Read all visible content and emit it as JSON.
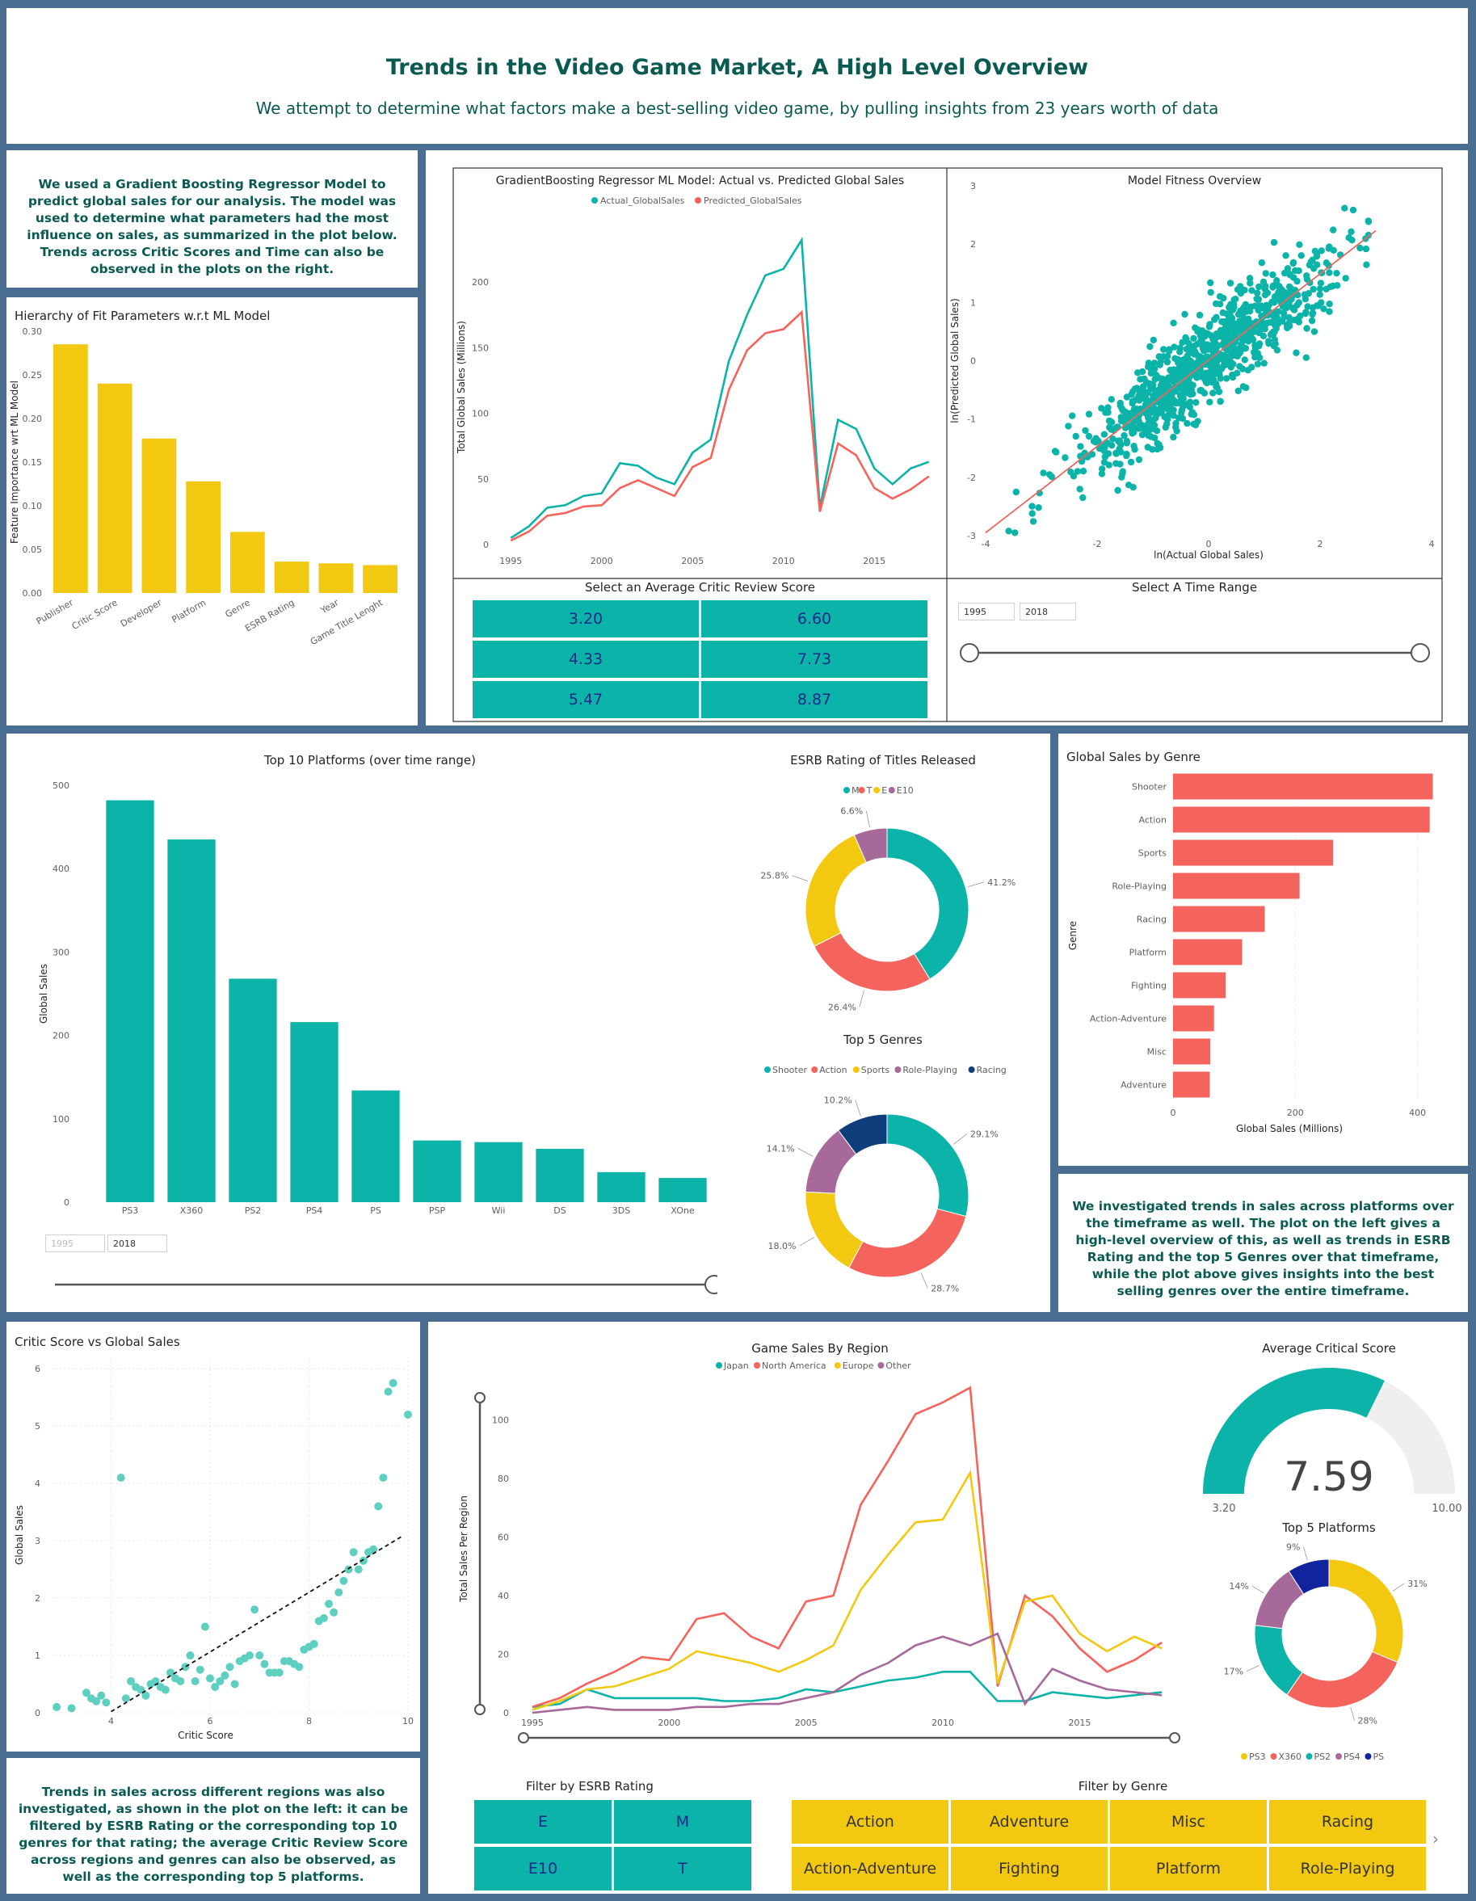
{
  "header": {
    "title": "Trends in the Video Game Market, A High Level Overview",
    "subtitle": "We attempt to determine what factors make a best-selling video game, by pulling insights from 23 years worth of data"
  },
  "intro_text": "We used a Gradient Boosting Regressor Model to predict global sales for our analysis. The model was used to determine what parameters had the most influence on sales, as summarized in the plot below. Trends across Critic Scores and Time can also be observed in the plots on the right.",
  "platform_text": "We investigated trends in sales across platforms over the timeframe as well. The plot on the left gives a high-level overview of this, as well as trends in ESRB Rating and the top 5 Genres over that timeframe, while the plot above gives insights into the best selling genres over the entire timeframe.",
  "region_text": "Trends in sales across different regions was also investigated, as shown in the plot on the left: it can be filtered by ESRB Rating or the corresponding top 10 genres for that rating; the average Critic Review Score across regions and genres can also be observed, as well as the corresponding top 5 platforms.",
  "colors": {
    "teal": "#0cb3a8",
    "red": "#f5635d",
    "yellow": "#f2c811",
    "purple": "#a66999",
    "navy": "#12239e",
    "header_text": "#0b5a52"
  },
  "chart_data": [
    {
      "id": "feature_importance",
      "type": "bar",
      "title": "Hierarchy of Fit Parameters w.r.t ML Model",
      "ylabel": "Feature Importance wrt ML Model",
      "categories": [
        "Publisher",
        "Critic Score",
        "Developer",
        "Platform",
        "Genre",
        "ESRB Rating",
        "Year",
        "Game Title Lenght"
      ],
      "values": [
        0.285,
        0.24,
        0.177,
        0.128,
        0.07,
        0.036,
        0.034,
        0.032
      ],
      "ylim": [
        0,
        0.3
      ],
      "yticks": [
        "0.00",
        "0.05",
        "0.10",
        "0.15",
        "0.20",
        "0.25",
        "0.30"
      ],
      "color": "#f2c811"
    },
    {
      "id": "actual_vs_predicted",
      "type": "line",
      "title": "GradientBoosting Regressor ML Model: Actual vs. Predicted Global Sales",
      "ylabel": "Total Global Sales (Millions)",
      "x": [
        1995,
        1996,
        1997,
        1998,
        1999,
        2000,
        2001,
        2002,
        2003,
        2004,
        2005,
        2006,
        2007,
        2008,
        2009,
        2010,
        2011,
        2012,
        2013,
        2014,
        2015,
        2016,
        2017,
        2018
      ],
      "xlim": [
        1994.5,
        2018.5
      ],
      "xticks": [
        "1995",
        "2000",
        "2005",
        "2010",
        "2015"
      ],
      "ylim": [
        0,
        240
      ],
      "yticks": [
        "0",
        "50",
        "100",
        "150",
        "200"
      ],
      "series": [
        {
          "name": "Actual_GlobalSales",
          "color": "#0cb3a8",
          "values": [
            5,
            14,
            28,
            30,
            37,
            39,
            62,
            60,
            51,
            46,
            70,
            80,
            140,
            175,
            205,
            210,
            232,
            28,
            95,
            88,
            58,
            46,
            58,
            63
          ]
        },
        {
          "name": "Predicted_GlobalSales",
          "color": "#f5635d",
          "values": [
            3,
            10,
            22,
            24,
            29,
            30,
            43,
            49,
            43,
            37,
            59,
            66,
            118,
            148,
            161,
            164,
            177,
            25,
            77,
            68,
            43,
            35,
            42,
            52
          ]
        }
      ]
    },
    {
      "id": "model_fitness",
      "type": "scatter",
      "title": "Model Fitness Overview",
      "xlabel": "ln(Actual Global Sales)",
      "ylabel": "ln(Predicted Global Sales)",
      "xlim": [
        -4,
        4
      ],
      "ylim": [
        -3,
        3
      ],
      "xticks": [
        "-4",
        "-2",
        "0",
        "2",
        "4"
      ],
      "yticks": [
        "-3",
        "-2",
        "-1",
        "0",
        "1",
        "2",
        "3"
      ],
      "trend": {
        "slope": 0.74,
        "intercept": 0.01,
        "x_range": [
          -4,
          3
        ]
      },
      "point_color": "#0cb3a8"
    },
    {
      "id": "top10_platforms",
      "type": "bar",
      "title": "Top 10 Platforms (over time range)",
      "ylabel": "Global Sales",
      "categories": [
        "PS3",
        "X360",
        "PS2",
        "PS4",
        "PS",
        "PSP",
        "Wii",
        "DS",
        "3DS",
        "XOne"
      ],
      "values": [
        482,
        435,
        268,
        216,
        134,
        74,
        72,
        64,
        36,
        29
      ],
      "ylim": [
        0,
        500
      ],
      "yticks": [
        "0",
        "100",
        "200",
        "300",
        "400",
        "500"
      ],
      "color": "#0cb3a8"
    },
    {
      "id": "esrb_rating",
      "type": "pie",
      "title": "ESRB Rating of Titles Released",
      "labels": [
        "M",
        "T",
        "E",
        "E10"
      ],
      "values": [
        41.2,
        26.4,
        25.8,
        6.6
      ],
      "value_labels": [
        "41.2%",
        "26.4%",
        "25.8%",
        "6.6%"
      ],
      "colors": [
        "#0cb3a8",
        "#f5635d",
        "#f2c811",
        "#a66999"
      ]
    },
    {
      "id": "top5_genres",
      "type": "pie",
      "title": "Top 5 Genres",
      "labels": [
        "Shooter",
        "Action",
        "Sports",
        "Role-Playing",
        "Racing"
      ],
      "values": [
        29.1,
        28.7,
        18.0,
        14.1,
        10.2
      ],
      "value_labels": [
        "29.1%",
        "28.7%",
        "18.0%",
        "14.1%",
        "10.2%"
      ],
      "colors": [
        "#0cb3a8",
        "#f5635d",
        "#f2c811",
        "#a66999",
        "#0e3f7c"
      ]
    },
    {
      "id": "genre_sales",
      "type": "bar",
      "title": "Global Sales by Genre",
      "xlabel": "Global Sales (Millions)",
      "ylabel": "Genre",
      "categories": [
        "Shooter",
        "Action",
        "Sports",
        "Role-Playing",
        "Racing",
        "Platform",
        "Fighting",
        "Action-Adventure",
        "Misc",
        "Adventure"
      ],
      "values": [
        425,
        420,
        262,
        207,
        150,
        113,
        86,
        67,
        61,
        60
      ],
      "xlim": [
        0,
        460
      ],
      "xticks": [
        "0",
        "200",
        "400"
      ],
      "color": "#f5635d"
    },
    {
      "id": "critic_vs_sales",
      "type": "scatter",
      "title": "Critic Score vs Global Sales",
      "xlabel": "Critic Score",
      "ylabel": "Global Sales",
      "xlim": [
        2.8,
        10
      ],
      "ylim": [
        0,
        6.2
      ],
      "xticks": [
        "4",
        "6",
        "8",
        "10"
      ],
      "yticks": [
        "0",
        "1",
        "2",
        "3",
        "4",
        "5",
        "6"
      ],
      "points": [
        [
          2.9,
          0.1
        ],
        [
          3.2,
          0.08
        ],
        [
          3.5,
          0.35
        ],
        [
          3.6,
          0.25
        ],
        [
          3.7,
          0.2
        ],
        [
          3.8,
          0.3
        ],
        [
          3.9,
          0.18
        ],
        [
          4.2,
          4.1
        ],
        [
          4.3,
          0.25
        ],
        [
          4.4,
          0.55
        ],
        [
          4.5,
          0.45
        ],
        [
          4.6,
          0.4
        ],
        [
          4.7,
          0.3
        ],
        [
          4.8,
          0.5
        ],
        [
          4.9,
          0.55
        ],
        [
          5.0,
          0.45
        ],
        [
          5.1,
          0.4
        ],
        [
          5.2,
          0.7
        ],
        [
          5.3,
          0.6
        ],
        [
          5.4,
          0.55
        ],
        [
          5.5,
          0.8
        ],
        [
          5.6,
          1.0
        ],
        [
          5.7,
          0.55
        ],
        [
          5.8,
          0.75
        ],
        [
          5.9,
          1.5
        ],
        [
          6.0,
          0.6
        ],
        [
          6.1,
          0.45
        ],
        [
          6.2,
          0.55
        ],
        [
          6.3,
          0.65
        ],
        [
          6.4,
          0.8
        ],
        [
          6.5,
          0.5
        ],
        [
          6.6,
          0.9
        ],
        [
          6.7,
          0.95
        ],
        [
          6.8,
          1.0
        ],
        [
          6.9,
          1.8
        ],
        [
          7.0,
          1.0
        ],
        [
          7.1,
          0.85
        ],
        [
          7.2,
          0.7
        ],
        [
          7.3,
          0.7
        ],
        [
          7.4,
          0.7
        ],
        [
          7.5,
          0.9
        ],
        [
          7.6,
          0.9
        ],
        [
          7.7,
          0.85
        ],
        [
          7.8,
          0.8
        ],
        [
          7.9,
          1.1
        ],
        [
          8.0,
          1.15
        ],
        [
          8.1,
          1.2
        ],
        [
          8.2,
          1.6
        ],
        [
          8.3,
          1.65
        ],
        [
          8.4,
          1.9
        ],
        [
          8.5,
          1.75
        ],
        [
          8.6,
          2.1
        ],
        [
          8.7,
          2.3
        ],
        [
          8.8,
          2.5
        ],
        [
          8.9,
          2.8
        ],
        [
          9.0,
          2.5
        ],
        [
          9.1,
          2.65
        ],
        [
          9.2,
          2.8
        ],
        [
          9.3,
          2.85
        ],
        [
          9.4,
          3.6
        ],
        [
          9.5,
          4.1
        ],
        [
          9.6,
          5.6
        ],
        [
          9.7,
          5.75
        ],
        [
          10.0,
          5.2
        ]
      ],
      "trend": {
        "slope": 0.52,
        "intercept": -2.06,
        "x_range": [
          4.0,
          9.9
        ]
      },
      "point_color": "#5fcfc0"
    },
    {
      "id": "sales_by_region",
      "type": "line",
      "title": "Game Sales By Region",
      "ylabel": "Total Sales Per Region",
      "x": [
        1995,
        1996,
        1997,
        1998,
        1999,
        2000,
        2001,
        2002,
        2003,
        2004,
        2005,
        2006,
        2007,
        2008,
        2009,
        2010,
        2011,
        2012,
        2013,
        2014,
        2015,
        2016,
        2017,
        2018
      ],
      "xlim": [
        1994.5,
        2018.5
      ],
      "xticks": [
        "1995",
        "2000",
        "2005",
        "2010",
        "2015"
      ],
      "ylim": [
        0,
        112
      ],
      "yticks": [
        "0",
        "20",
        "40",
        "60",
        "80",
        "100"
      ],
      "series": [
        {
          "name": "Japan",
          "color": "#0cb3a8",
          "values": [
            2,
            3,
            8,
            5,
            5,
            5,
            5,
            4,
            4,
            5,
            8,
            7,
            9,
            11,
            12,
            14,
            14,
            4,
            4,
            7,
            6,
            5,
            6,
            7
          ]
        },
        {
          "name": "North America",
          "color": "#f5635d",
          "values": [
            2,
            5,
            10,
            14,
            19,
            18,
            32,
            34,
            26,
            22,
            38,
            40,
            71,
            86,
            102,
            106,
            111,
            9,
            40,
            33,
            22,
            14,
            18,
            24
          ]
        },
        {
          "name": "Europe",
          "color": "#f2c811",
          "values": [
            1,
            4,
            8,
            9,
            12,
            15,
            21,
            19,
            17,
            14,
            18,
            23,
            42,
            54,
            65,
            66,
            82,
            10,
            38,
            40,
            27,
            21,
            26,
            22
          ]
        },
        {
          "name": "Other",
          "color": "#a66999",
          "values": [
            0,
            1,
            2,
            1,
            1,
            1,
            2,
            2,
            3,
            3,
            5,
            7,
            13,
            17,
            23,
            26,
            23,
            27,
            3,
            15,
            11,
            8,
            7,
            6
          ]
        }
      ]
    },
    {
      "id": "average_critical_score",
      "type": "gauge",
      "title": "Average Critical Score",
      "value": 7.59,
      "value_label": "7.59",
      "min_label": "3.20",
      "max_label": "10.00",
      "min": 3.2,
      "max": 10.0
    },
    {
      "id": "top5_platforms",
      "type": "pie",
      "title": "Top 5 Platforms",
      "labels": [
        "PS3",
        "X360",
        "PS2",
        "PS4",
        "PS"
      ],
      "values": [
        31,
        28,
        17,
        14,
        9
      ],
      "value_labels": [
        "31%",
        "28%",
        "17%",
        "14%",
        "9%"
      ],
      "colors": [
        "#f2c811",
        "#f5635d",
        "#0cb3a8",
        "#a66999",
        "#12239e"
      ]
    }
  ],
  "slicers": {
    "critic_title": "Select an Average Critic Review Score",
    "critic_options": [
      "3.20",
      "6.60",
      "4.33",
      "7.73",
      "5.47",
      "8.87"
    ],
    "time_title": "Select A Time Range",
    "time_start": "1995",
    "time_end": "2018",
    "platform_time_start": "1995",
    "platform_time_end": "2018",
    "esrb_title": "Filter by ESRB Rating",
    "esrb_options": [
      "E",
      "M",
      "E10",
      "T"
    ],
    "genre_title": "Filter by Genre",
    "genre_options": [
      "Action",
      "Adventure",
      "Misc",
      "Racing",
      "Action-Adventure",
      "Fighting",
      "Platform",
      "Role-Playing"
    ]
  }
}
